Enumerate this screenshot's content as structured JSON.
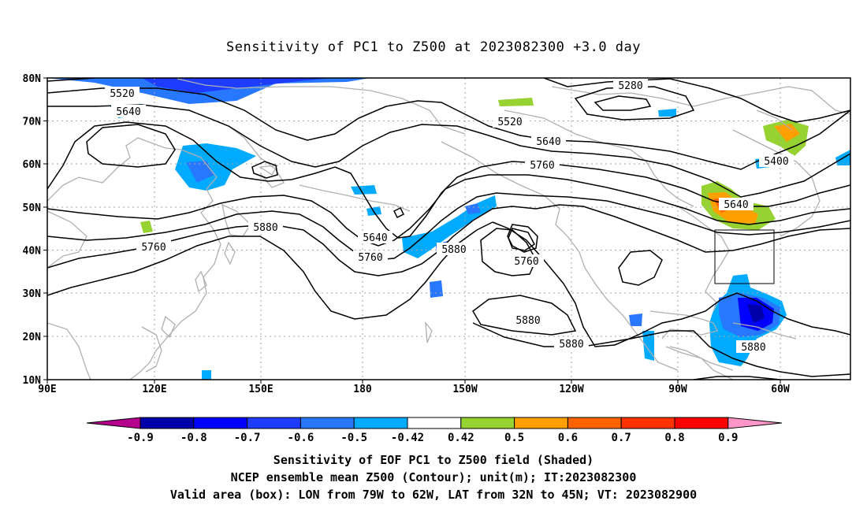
{
  "title": "Sensitivity of PC1 to Z500 at 2023082300 +3.0 day",
  "lat_ticks": [
    "80N",
    "70N",
    "60N",
    "50N",
    "40N",
    "30N",
    "20N",
    "10N"
  ],
  "lon_ticks": [
    "90E",
    "120E",
    "150E",
    "180",
    "150W",
    "120W",
    "90W",
    "60W"
  ],
  "contour_labels": [
    "5520",
    "5640",
    "5280",
    "5520",
    "5640",
    "5760",
    "5400",
    "5640",
    "5880",
    "5760",
    "5640",
    "5760",
    "5880",
    "5760",
    "5880",
    "5880",
    "5880"
  ],
  "colorbar": {
    "labels": [
      "-0.9",
      "-0.8",
      "-0.7",
      "-0.6",
      "-0.5",
      "-0.42",
      "0.42",
      "0.5",
      "0.6",
      "0.7",
      "0.8",
      "0.9"
    ],
    "colors": [
      "#b4008c",
      "#0000aa",
      "#0000ff",
      "#1e3cff",
      "#2878ff",
      "#00aaff",
      "#ffffff",
      "#96d232",
      "#ffa000",
      "#ff6400",
      "#ff3200",
      "#ff0000",
      "#ff96c8"
    ]
  },
  "footer": {
    "line1": "Sensitivity of EOF PC1 to Z500 field (Shaded)",
    "line2": "NCEP ensemble mean Z500 (Contour); unit(m); IT:2023082300",
    "line3": "Valid area (box): LON from 79W to 62W, LAT from 32N to 45N; VT: 2023082900"
  }
}
